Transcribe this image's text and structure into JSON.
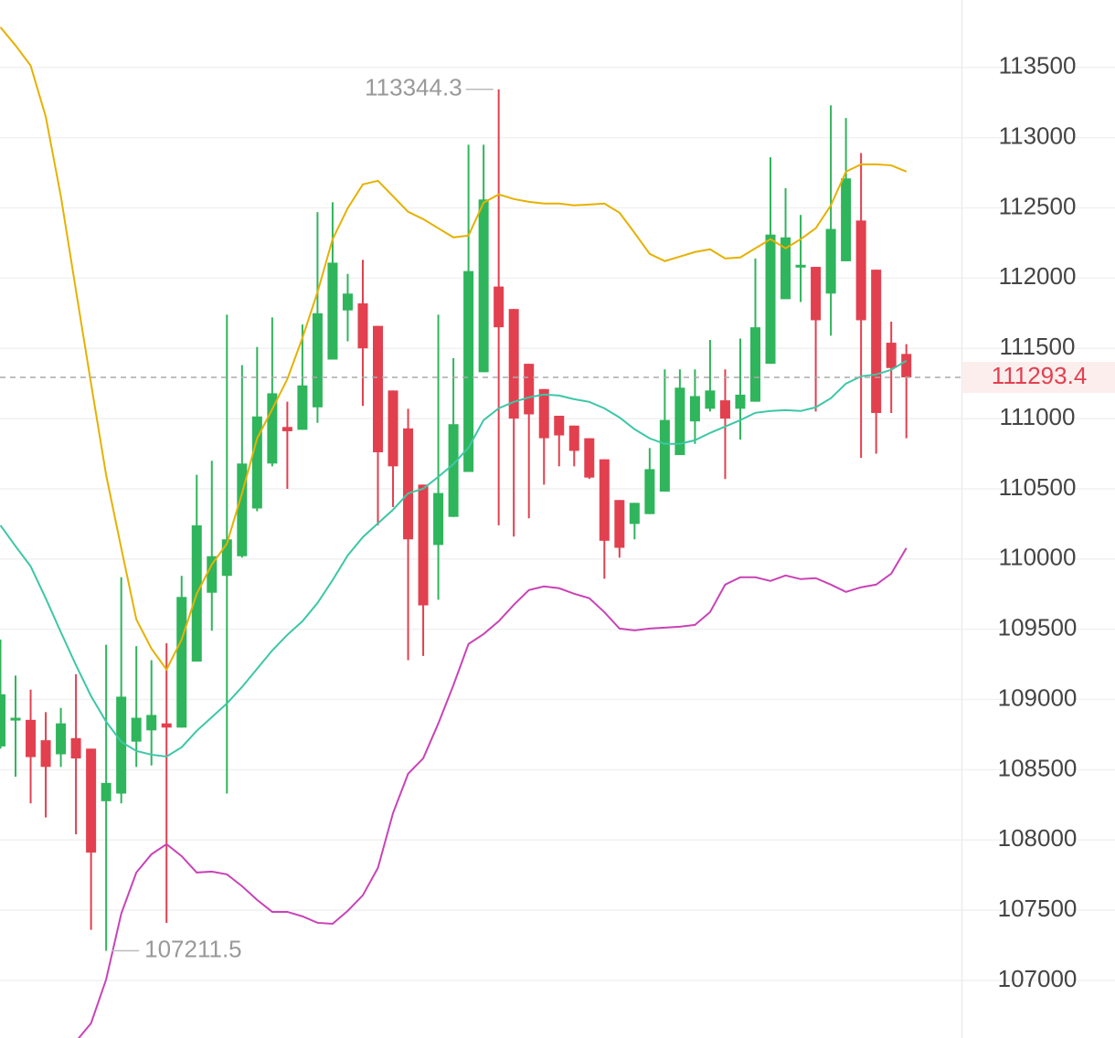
{
  "chart_data": {
    "type": "candlestick",
    "up_color": "#2fb55c",
    "down_color": "#e2404f",
    "ylim": [
      106590,
      113980
    ],
    "yticks": [
      107000,
      107500,
      108000,
      108500,
      109000,
      109500,
      110000,
      110500,
      111000,
      111500,
      112000,
      112500,
      113000,
      113500
    ],
    "grid": true,
    "open": [
      108666,
      108850,
      108855,
      108710,
      108610,
      108725,
      108650,
      108276,
      108330,
      108700,
      108780,
      108830,
      108800,
      109270,
      109760,
      109880,
      110020,
      110360,
      110680,
      110940,
      110920,
      111080,
      111420,
      111770,
      111820,
      111660,
      111200,
      110930,
      110530,
      110100,
      110300,
      110620,
      111330,
      111940,
      111780,
      111390,
      111210,
      111020,
      110950,
      110860,
      110710,
      110420,
      110250,
      110320,
      110480,
      110740,
      110980,
      111070,
      111130,
      111070,
      111120,
      111390,
      111850,
      112075,
      112080,
      111890,
      112120,
      112410,
      112060,
      111540,
      111460
    ],
    "high": [
      109427,
      109170,
      109070,
      108910,
      108940,
      109180,
      108650,
      109390,
      109870,
      109380,
      109280,
      109400,
      109880,
      110600,
      110700,
      111740,
      111380,
      111510,
      111720,
      111120,
      111670,
      112470,
      112540,
      112030,
      112130,
      111660,
      111200,
      111070,
      110530,
      111740,
      111430,
      112950,
      112950,
      113344.3,
      111780,
      111390,
      111210,
      111020,
      110950,
      110860,
      110710,
      110420,
      110400,
      110790,
      111350,
      111350,
      111350,
      111560,
      111350,
      111570,
      112140,
      112860,
      112640,
      112450,
      112080,
      113230,
      113140,
      112890,
      112060,
      111690,
      111530
    ],
    "low": [
      108650,
      108450,
      108260,
      108160,
      108520,
      108040,
      107360,
      107211.5,
      108260,
      108520,
      108530,
      107410,
      108800,
      109270,
      109490,
      108330,
      110010,
      110340,
      110660,
      110500,
      110920,
      110970,
      111420,
      111550,
      111090,
      110240,
      110370,
      109280,
      109310,
      109710,
      110300,
      110620,
      111330,
      110240,
      110160,
      110290,
      110530,
      110660,
      110660,
      110570,
      109860,
      110010,
      110140,
      110320,
      110480,
      110740,
      110820,
      111050,
      110570,
      110850,
      111120,
      111390,
      111850,
      111830,
      111050,
      111590,
      112120,
      110720,
      110750,
      111040,
      110860
    ],
    "close": [
      109037,
      108870,
      108590,
      108520,
      108830,
      108580,
      107910,
      108406,
      109020,
      108870,
      108890,
      108800,
      109730,
      110240,
      110020,
      110140,
      110680,
      111015,
      111180,
      110910,
      111236,
      111750,
      112110,
      111890,
      111500,
      110760,
      110660,
      110140,
      109670,
      110470,
      110960,
      112050,
      112560,
      111650,
      111000,
      111030,
      110860,
      110880,
      110770,
      110580,
      110130,
      110080,
      110400,
      110640,
      110990,
      111220,
      111160,
      111200,
      111000,
      111170,
      111650,
      112310,
      112290,
      112095,
      111700,
      112350,
      112710,
      111700,
      111040,
      111360,
      111293.4
    ],
    "overlays": [
      {
        "color": "#e6b100",
        "values": [
          113786,
          113656,
          113513,
          113149,
          112583,
          111913,
          111249,
          110598,
          110078,
          109570,
          109362,
          109213,
          109427,
          109753,
          109961,
          110110,
          110468,
          110859,
          111067,
          111281,
          111574,
          111900,
          112277,
          112498,
          112667,
          112693,
          112583,
          112472,
          112420,
          112355,
          112290,
          112303,
          112537,
          112596,
          112563,
          112543,
          112531,
          112531,
          112518,
          112524,
          112531,
          112466,
          112322,
          112173,
          112121,
          112153,
          112186,
          112205,
          112140,
          112147,
          112212,
          112277,
          112212,
          112277,
          112355,
          112518,
          112758,
          112810,
          112810,
          112803,
          112758
        ]
      },
      {
        "color": "#3cc7a6",
        "values": [
          110240,
          110091,
          109948,
          109720,
          109479,
          109245,
          109024,
          108842,
          108699,
          108634,
          108607,
          108594,
          108660,
          108777,
          108874,
          108972,
          109089,
          109219,
          109349,
          109460,
          109557,
          109687,
          109850,
          110026,
          110156,
          110254,
          110351,
          110468,
          110501,
          110585,
          110676,
          110793,
          110989,
          111073,
          111119,
          111151,
          111171,
          111164,
          111138,
          111119,
          111073,
          111008,
          110924,
          110859,
          110820,
          110820,
          110846,
          110898,
          110943,
          110989,
          111041,
          111054,
          111060,
          111054,
          111080,
          111145,
          111249,
          111301,
          111314,
          111347,
          111412
        ]
      },
      {
        "color": "#c943b6",
        "values": [
          null,
          null,
          null,
          null,
          null,
          106565,
          106695,
          107007,
          107475,
          107768,
          107898,
          107970,
          107885,
          107768,
          107775,
          107755,
          107671,
          107573,
          107488,
          107488,
          107456,
          107410,
          107403,
          107495,
          107606,
          107801,
          108191,
          108471,
          108581,
          108829,
          109102,
          109395,
          109466,
          109557,
          109674,
          109779,
          109805,
          109792,
          109753,
          109721,
          109622,
          109505,
          109492,
          109505,
          109512,
          109518,
          109531,
          109622,
          109818,
          109870,
          109870,
          109844,
          109883,
          109857,
          109864,
          109818,
          109766,
          109799,
          109818,
          109896,
          110078
        ]
      }
    ]
  }
}
